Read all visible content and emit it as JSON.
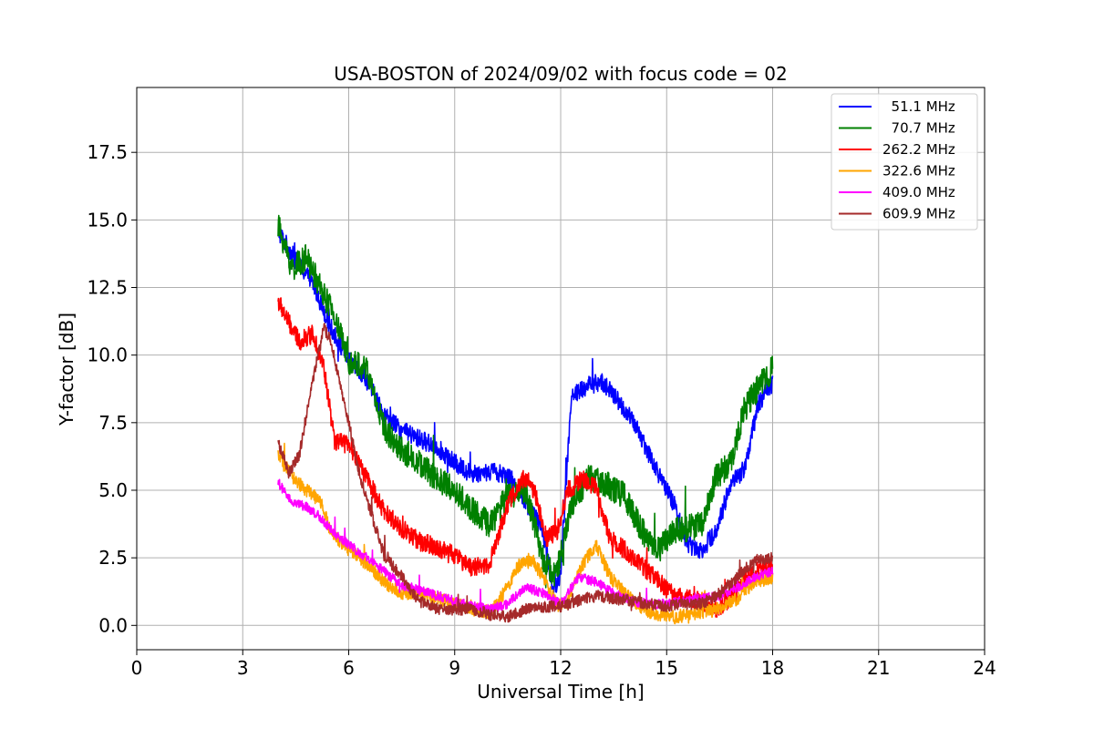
{
  "chart_data": {
    "type": "line",
    "title": "USA-BOSTON of 2024/09/02 with focus code = 02",
    "xlabel": "Universal Time [h]",
    "ylabel": "Y-factor [dB]",
    "xlim": [
      0,
      24
    ],
    "ylim": [
      -0.9,
      19.9
    ],
    "xticks": [
      "0",
      "3",
      "6",
      "9",
      "12",
      "15",
      "18",
      "21",
      "24"
    ],
    "yticks": [
      "0.0",
      "2.5",
      "5.0",
      "7.5",
      "10.0",
      "12.5",
      "15.0",
      "17.5"
    ],
    "grid": true,
    "legend_position": "top-right",
    "series": [
      {
        "name": "  51.1 MHz",
        "color": "#0000ff",
        "noise": 0.35,
        "x": [
          4.0,
          4.5,
          5.0,
          5.5,
          6.0,
          6.5,
          7.0,
          7.5,
          8.0,
          8.5,
          9.0,
          9.5,
          10.0,
          10.5,
          11.0,
          11.5,
          11.8,
          12.0,
          12.3,
          12.8,
          13.2,
          13.8,
          14.2,
          14.8,
          15.2,
          15.6,
          16.0,
          16.4,
          16.8,
          17.2,
          17.6,
          18.0
        ],
        "y": [
          14.6,
          13.5,
          12.6,
          11.0,
          9.8,
          9.1,
          7.8,
          7.2,
          6.9,
          6.6,
          6.0,
          5.6,
          5.7,
          5.6,
          4.6,
          3.5,
          1.2,
          2.0,
          8.5,
          8.9,
          9.0,
          8.0,
          7.2,
          5.5,
          4.5,
          3.0,
          2.8,
          3.5,
          5.2,
          5.8,
          8.2,
          9.0
        ]
      },
      {
        "name": "  70.7 MHz",
        "color": "#008000",
        "noise": 0.5,
        "x": [
          4.0,
          4.4,
          4.8,
          5.2,
          5.6,
          6.0,
          6.5,
          7.0,
          7.5,
          8.0,
          8.5,
          9.0,
          9.5,
          10.0,
          10.5,
          11.0,
          11.5,
          11.8,
          12.0,
          12.3,
          12.8,
          13.3,
          13.8,
          14.3,
          14.8,
          15.2,
          15.6,
          16.0,
          16.4,
          16.8,
          17.2,
          17.6,
          18.0
        ],
        "y": [
          14.8,
          13.2,
          13.6,
          12.5,
          11.4,
          9.8,
          9.5,
          7.3,
          6.5,
          6.0,
          5.4,
          5.0,
          4.3,
          3.7,
          4.8,
          5.0,
          2.5,
          1.8,
          2.5,
          4.5,
          5.5,
          5.2,
          4.8,
          3.5,
          2.8,
          3.5,
          3.6,
          3.8,
          5.5,
          6.0,
          8.0,
          8.8,
          9.5
        ]
      },
      {
        "name": "262.2 MHz",
        "color": "#ff0000",
        "noise": 0.35,
        "x": [
          4.0,
          4.3,
          4.6,
          5.0,
          5.3,
          5.6,
          6.0,
          6.5,
          7.0,
          7.5,
          8.0,
          8.5,
          9.0,
          9.5,
          10.0,
          10.5,
          11.0,
          11.3,
          11.6,
          11.9,
          12.2,
          12.6,
          13.0,
          13.4,
          13.8,
          14.3,
          14.8,
          15.2,
          15.6,
          16.0,
          16.4,
          16.8,
          17.2,
          17.6,
          18.0
        ],
        "y": [
          12.0,
          11.2,
          10.5,
          10.8,
          9.5,
          6.8,
          6.7,
          5.5,
          4.2,
          3.6,
          3.1,
          2.9,
          2.6,
          2.1,
          2.3,
          4.5,
          5.5,
          4.8,
          3.2,
          3.5,
          5.0,
          5.4,
          5.1,
          3.2,
          2.8,
          2.2,
          1.6,
          1.1,
          1.0,
          0.9,
          0.6,
          1.0,
          1.8,
          2.0,
          2.2
        ]
      },
      {
        "name": "322.6 MHz",
        "color": "#ffa500",
        "noise": 0.25,
        "x": [
          4.0,
          4.4,
          4.8,
          5.2,
          5.5,
          5.7,
          6.0,
          6.5,
          7.0,
          7.5,
          8.0,
          8.5,
          9.0,
          9.5,
          10.0,
          10.5,
          10.8,
          11.2,
          11.6,
          11.9,
          12.2,
          12.6,
          13.0,
          13.4,
          13.8,
          14.3,
          14.8,
          15.2,
          15.6,
          16.0,
          16.5,
          17.0,
          17.5,
          18.0
        ],
        "y": [
          6.3,
          5.5,
          5.0,
          4.6,
          3.4,
          3.2,
          2.8,
          2.3,
          1.6,
          1.2,
          1.2,
          1.0,
          0.8,
          0.6,
          0.5,
          1.4,
          2.2,
          2.4,
          1.6,
          0.7,
          0.9,
          2.2,
          3.0,
          1.8,
          1.2,
          0.6,
          0.4,
          0.3,
          0.4,
          0.5,
          0.6,
          1.0,
          1.6,
          1.8
        ]
      },
      {
        "name": "409.0 MHz",
        "color": "#ff00ff",
        "noise": 0.18,
        "x": [
          4.0,
          4.4,
          4.8,
          5.2,
          5.6,
          6.0,
          6.5,
          7.0,
          7.5,
          8.0,
          8.5,
          9.0,
          9.5,
          10.0,
          10.5,
          11.0,
          11.5,
          12.0,
          12.5,
          13.0,
          13.5,
          14.0,
          14.5,
          15.0,
          15.5,
          16.0,
          16.5,
          17.0,
          17.5,
          18.0
        ],
        "y": [
          5.3,
          4.5,
          4.4,
          4.0,
          3.4,
          3.0,
          2.5,
          2.0,
          1.5,
          1.3,
          1.1,
          0.9,
          0.7,
          0.6,
          0.8,
          1.4,
          1.2,
          0.8,
          1.8,
          1.6,
          1.2,
          0.9,
          0.8,
          0.8,
          0.9,
          1.0,
          1.1,
          1.4,
          1.8,
          2.0
        ]
      },
      {
        "name": "609.9 MHz",
        "color": "#a52a2a",
        "noise": 0.22,
        "x": [
          4.0,
          4.3,
          4.6,
          4.9,
          5.1,
          5.3,
          5.5,
          5.7,
          6.0,
          6.3,
          6.6,
          7.0,
          7.5,
          8.0,
          8.5,
          9.0,
          9.5,
          10.0,
          10.5,
          11.0,
          11.5,
          12.0,
          12.5,
          13.0,
          13.5,
          14.0,
          14.5,
          15.0,
          15.5,
          16.0,
          16.5,
          17.0,
          17.5,
          18.0
        ],
        "y": [
          6.8,
          5.6,
          6.3,
          8.5,
          9.8,
          11.0,
          10.5,
          9.2,
          7.5,
          5.6,
          4.3,
          2.6,
          1.8,
          0.9,
          0.6,
          0.6,
          0.6,
          0.4,
          0.3,
          0.6,
          0.7,
          0.7,
          0.9,
          1.1,
          1.0,
          0.9,
          0.8,
          0.7,
          0.8,
          0.8,
          1.2,
          1.8,
          2.4,
          2.5
        ]
      }
    ]
  }
}
